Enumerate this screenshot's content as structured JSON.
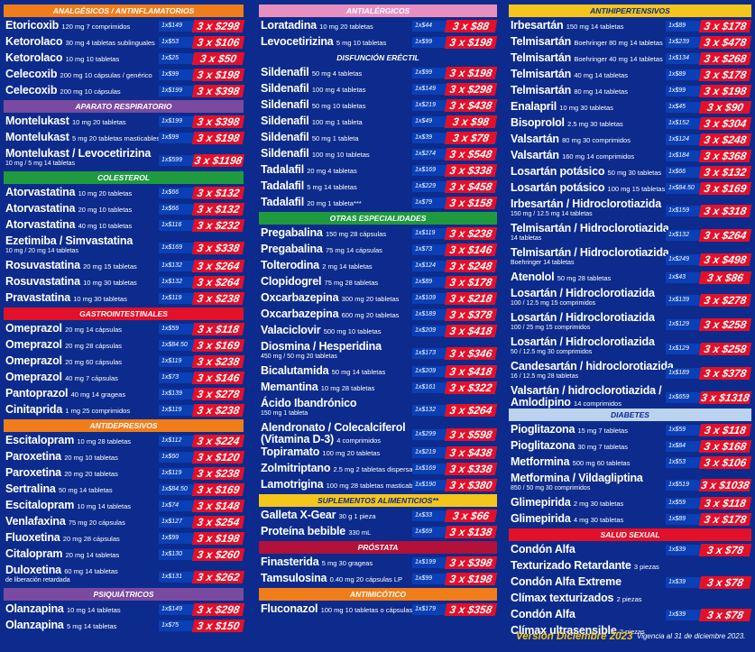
{
  "columns": [
    {
      "sections": [
        {
          "title": "ANALGÉSICOS / ANTINFLAMATORIOS",
          "color": "#f07d19",
          "rows": [
            {
              "name": "Etoricoxib",
              "detail": "120 mg 7 comprimidos",
              "unit": "1x$149",
              "price": "3 x $298"
            },
            {
              "name": "Ketorolaco",
              "detail": "30 mg 4 tabletas sublinguales",
              "unit": "1x$53",
              "price": "3 x $106"
            },
            {
              "name": "Ketorolaco",
              "detail": "10 mg 10 tabletas",
              "unit": "1x$25",
              "price": "3 x $50"
            },
            {
              "name": "Celecoxib",
              "detail": "200 mg 10 cápsulas / genérico",
              "unit": "1x$99",
              "price": "3 x $198"
            },
            {
              "name": "Celecoxib",
              "detail": "200 mg 10 cápsulas",
              "unit": "1x$199",
              "price": "3 x $398"
            }
          ]
        },
        {
          "title": "APARATO RESPIRATORIO",
          "color": "#7a4aa0",
          "rows": [
            {
              "name": "Montelukast",
              "detail": "10 mg 20 tabletas",
              "unit": "1x$199",
              "price": "3 x $398"
            },
            {
              "name": "Montelukast",
              "detail": "5 mg 20 tabletas masticables",
              "unit": "1x$99",
              "price": "3 x $198"
            },
            {
              "name": "Montelukast / Levocetirizina",
              "detail": "",
              "sub": "10 mg / 5 mg 14 tabletas",
              "unit": "1x$599",
              "price": "3 x $1198"
            }
          ]
        },
        {
          "title": "COLESTEROL",
          "color": "#1f9a3f",
          "rows": [
            {
              "name": "Atorvastatina",
              "detail": "10 mg 20 tabletas",
              "unit": "1x$66",
              "price": "3 x $132"
            },
            {
              "name": "Atorvastatina",
              "detail": "20 mg 10 tabletas",
              "unit": "1x$66",
              "price": "3 x $132"
            },
            {
              "name": "Atorvastatina",
              "detail": "40 mg 10 tabletas",
              "unit": "1x$116",
              "price": "3 x $232"
            },
            {
              "name": "Ezetimiba / Simvastatina",
              "detail": "",
              "sub": "10 mg / 20 mg 14 tabletas",
              "unit": "1x$169",
              "price": "3 x $338"
            },
            {
              "name": "Rosuvastatina",
              "detail": "20 mg 15 tabletas",
              "unit": "1x$132",
              "price": "3 x $264"
            },
            {
              "name": "Rosuvastatina",
              "detail": "10 mg 30 tabletas",
              "unit": "1x$132",
              "price": "3 x $264"
            },
            {
              "name": "Pravastatina",
              "detail": "10 mg 30 tabletas",
              "unit": "1x$119",
              "price": "3 x $238"
            }
          ]
        },
        {
          "title": "GASTROINTESTINALES",
          "color": "#e3102a",
          "rows": [
            {
              "name": "Omeprazol",
              "detail": "20 mg 14 cápsulas",
              "unit": "1x$59",
              "price": "3 x $118"
            },
            {
              "name": "Omeprazol",
              "detail": "20 mg 28 cápsulas",
              "unit": "1x$84.50",
              "price": "3 x $169"
            },
            {
              "name": "Omeprazol",
              "detail": "20 mg 60 cápsulas",
              "unit": "1x$119",
              "price": "3 x $238"
            },
            {
              "name": "Omeprazol",
              "detail": "40 mg 7 cápsulas",
              "unit": "1x$73",
              "price": "3 x $146"
            },
            {
              "name": "Pantoprazol",
              "detail": "40 mg 14 grageas",
              "unit": "1x$139",
              "price": "3 x $278"
            },
            {
              "name": "Cinitaprida",
              "detail": "1 mg 25 comprimidos",
              "unit": "1x$119",
              "price": "3 x $238"
            }
          ]
        },
        {
          "title": "ANTIDEPRESIVOS",
          "color": "#f07d19",
          "rows": [
            {
              "name": "Escitalopram",
              "detail": "10 mg 28 tabletas",
              "unit": "1x$112",
              "price": "3 x $224"
            },
            {
              "name": "Paroxetina",
              "detail": "20 mg 10 tabletas",
              "unit": "1x$60",
              "price": "3 x $120"
            },
            {
              "name": "Paroxetina",
              "detail": "20 mg 20 tabletas",
              "unit": "1x$119",
              "price": "3 x $238"
            },
            {
              "name": "Sertralina",
              "detail": "50 mg 14 tabletas",
              "unit": "1x$84.50",
              "price": "3 x $169"
            },
            {
              "name": "Escitalopram",
              "detail": "10 mg 14 tabletas",
              "unit": "1x$74",
              "price": "3 x $148"
            },
            {
              "name": "Venlafaxina",
              "detail": "75 mg 20 cápsulas",
              "unit": "1x$127",
              "price": "3 x $254"
            },
            {
              "name": "Fluoxetina",
              "detail": "20 mg 28 cápsulas",
              "unit": "1x$99",
              "price": "3 x $198"
            },
            {
              "name": "Citalopram",
              "detail": "20 mg 14 tabletas",
              "unit": "1x$130",
              "price": "3 x $260"
            },
            {
              "name": "Duloxetina",
              "detail": "60 mg 14 tabletas",
              "sub": "de liberación retardada",
              "unit": "1x$131",
              "price": "3 x $262"
            }
          ]
        },
        {
          "title": "PSIQUIÁTRICOS",
          "color": "#7a4aa0",
          "rows": [
            {
              "name": "Olanzapina",
              "detail": "10 mg 14 tabletas",
              "unit": "1x$149",
              "price": "3 x $298"
            },
            {
              "name": "Olanzapina",
              "detail": "5 mg 14 tabletas",
              "unit": "1x$75",
              "price": "3 x $150"
            }
          ]
        }
      ]
    },
    {
      "sections": [
        {
          "title": "ANTIALÉRGICOS",
          "color": "#e88fc2",
          "rows": [
            {
              "name": "Loratadina",
              "detail": "10 mg 20 tabletas",
              "unit": "1x$44",
              "price": "3 x $88"
            },
            {
              "name": "Levocetirizina",
              "detail": "5 mg 10 tabletas",
              "unit": "1x$99",
              "price": "3 x $198"
            }
          ]
        },
        {
          "title": "DISFUNCIÓN ERÉCTIL",
          "color": "#0c2b8c",
          "rows": [
            {
              "name": "Sildenafil",
              "detail": "50 mg 4 tabletas",
              "unit": "1x$99",
              "price": "3 x $198"
            },
            {
              "name": "Sildenafil",
              "detail": "100 mg 4 tabletas",
              "unit": "1x$149",
              "price": "3 x $298"
            },
            {
              "name": "Sildenafil",
              "detail": "50 mg 10 tabletas",
              "unit": "1x$219",
              "price": "3 x $438"
            },
            {
              "name": "Sildenafil",
              "detail": "100 mg 1 tableta",
              "unit": "1x$49",
              "price": "3 x $98"
            },
            {
              "name": "Sildenafil",
              "detail": "50 mg 1 tableta",
              "unit": "1x$39",
              "price": "3 x $78"
            },
            {
              "name": "Sildenafil",
              "detail": "100 mg 10 tabletas",
              "unit": "1x$274",
              "price": "3 x $548"
            },
            {
              "name": "Tadalafil",
              "detail": "20 mg 4 tabletas",
              "unit": "1x$169",
              "price": "3 x $338"
            },
            {
              "name": "Tadalafil",
              "detail": "5 mg 14 tabletas",
              "unit": "1x$229",
              "price": "3 x $458"
            },
            {
              "name": "Tadalafil",
              "detail": "20 mg 1 tableta***",
              "unit": "1x$79",
              "price": "3 x $158"
            }
          ]
        },
        {
          "title": "OTRAS ESPECIALIDADES",
          "color": "#1f9a3f",
          "rows": [
            {
              "name": "Pregabalina",
              "detail": "150 mg 28 cápsulas",
              "unit": "1x$119",
              "price": "3 x $238"
            },
            {
              "name": "Pregabalina",
              "detail": "75 mg 14 cápsulas",
              "unit": "1x$73",
              "price": "3 x $146"
            },
            {
              "name": "Tolterodina",
              "detail": "2 mg 14 tabletas",
              "unit": "1x$124",
              "price": "3 x $248"
            },
            {
              "name": "Clopidogrel",
              "detail": "75 mg 28 tabletas",
              "unit": "1x$89",
              "price": "3 x $178"
            },
            {
              "name": "Oxcarbazepina",
              "detail": "300 mg 20 tabletas",
              "unit": "1x$109",
              "price": "3 x $218"
            },
            {
              "name": "Oxcarbazepina",
              "detail": "600 mg 20 tabletas",
              "unit": "1x$189",
              "price": "3 x $378"
            },
            {
              "name": "Valaciclovir",
              "detail": "500 mg 10 tabletas",
              "unit": "1x$209",
              "price": "3 x $418"
            },
            {
              "name": "Diosmina / Hesperidina",
              "detail": "",
              "sub": "450 mg / 50 mg 20 tabletas",
              "unit": "1x$173",
              "price": "3 x $346"
            },
            {
              "name": "Bicalutamida",
              "detail": "50 mg 14 tabletas",
              "unit": "1x$209",
              "price": "3 x $418"
            },
            {
              "name": "Memantina",
              "detail": "10 mg 28 tabletas",
              "unit": "1x$161",
              "price": "3 x $322"
            },
            {
              "name": "Ácido Ibandrónico",
              "detail": "",
              "sub": "150 mg 1 tableta",
              "unit": "1x$132",
              "price": "3 x $264"
            },
            {
              "name": "Alendronato / Colecalciferol",
              "detail": "",
              "name2": "(Vitamina D-3)",
              "detail2": "4 comprimidos",
              "unit": "1x$299",
              "price": "3 x $598"
            },
            {
              "name": "Topiramato",
              "detail": "100 mg 20 tabletas",
              "unit": "1x$219",
              "price": "3 x $438"
            },
            {
              "name": "Zolmitriptano",
              "detail": "2.5 mg 2 tabletas dispersable",
              "unit": "1x$169",
              "price": "3 x $338"
            },
            {
              "name": "Lamotrigina",
              "detail": "100 mg 28 tabletas masticables",
              "unit": "1x$190",
              "price": "3 x $380"
            }
          ]
        },
        {
          "title": "SUPLEMENTOS ALIMENTICIOS**",
          "color": "#f4c51b",
          "dark": true,
          "rows": [
            {
              "name": "Galleta X-Gear",
              "detail": "30 g 1 pieza",
              "unit": "1x$33",
              "price": "3 x $66"
            },
            {
              "name": "Proteína bebible",
              "detail": "330 mL",
              "unit": "1x$69",
              "price": "3 x $138"
            }
          ]
        },
        {
          "title": "PRÓSTATA",
          "color": "#b3103a",
          "rows": [
            {
              "name": "Finasterida",
              "detail": "5 mg 30 grageas",
              "unit": "1x$199",
              "price": "3 x $398"
            },
            {
              "name": "Tamsulosina",
              "detail": "0.40 mg 20 cápsulas LP",
              "unit": "1x$99",
              "price": "3 x $198"
            }
          ]
        },
        {
          "title": "ANTIMICÓTICO",
          "color": "#f07d19",
          "rows": [
            {
              "name": "Fluconazol",
              "detail": "100 mg 10 tabletas o cápsulas",
              "unit": "1x$179",
              "price": "3 x $358"
            }
          ]
        }
      ]
    },
    {
      "sections": [
        {
          "title": "ANTIHIPERTENSIVOS",
          "color": "#f4c51b",
          "dark": true,
          "rows": [
            {
              "name": "Irbesartán",
              "detail": "150 mg 14 tabletas",
              "unit": "1x$89",
              "price": "3 x $178"
            },
            {
              "name": "Telmisartán",
              "detail": "Boehringer 80 mg 14 tabletas",
              "unit": "1x$239",
              "price": "3 x $478"
            },
            {
              "name": "Telmisartán",
              "detail": "Boehringer 40 mg 14 tabletas",
              "unit": "1x$134",
              "price": "3 x $268"
            },
            {
              "name": "Telmisartán",
              "detail": "40 mg 14 tabletas",
              "unit": "1x$89",
              "price": "3 x $178"
            },
            {
              "name": "Telmisartán",
              "detail": "80 mg 14 tabletas",
              "unit": "1x$99",
              "price": "3 x $198"
            },
            {
              "name": "Enalapril",
              "detail": "10 mg 30 tabletas",
              "unit": "1x$45",
              "price": "3 x $90"
            },
            {
              "name": "Bisoprolol",
              "detail": "2.5 mg 30 tabletas",
              "unit": "1x$152",
              "price": "3 x $304"
            },
            {
              "name": "Valsartán",
              "detail": "80 mg 30 comprimidos",
              "unit": "1x$124",
              "price": "3 x $248"
            },
            {
              "name": "Valsartán",
              "detail": "160 mg 14 comprimidos",
              "unit": "1x$184",
              "price": "3 x $368"
            },
            {
              "name": "Losartán potásico",
              "detail": "50 mg 30 tabletas",
              "unit": "1x$66",
              "price": "3 x $132"
            },
            {
              "name": "Losartán potásico",
              "detail": "100 mg 15 tabletas",
              "unit": "1x$84.50",
              "price": "3 x $169"
            },
            {
              "name": "Irbesartán / Hidroclorotiazida",
              "detail": "",
              "sub": "150 mg / 12.5 mg 14 tabletas",
              "unit": "1x$159",
              "price": "3 x $318"
            },
            {
              "name": "Telmisartán / Hidroclorotiazida",
              "detail": "",
              "sub": "14 tabletas",
              "unit": "1x$132",
              "price": "3 x $264"
            },
            {
              "name": "Telmisartán / Hidroclorotiazida",
              "detail": "",
              "sub": "Boehringer 14 tabletas",
              "unit": "1x$249",
              "price": "3 x $498"
            },
            {
              "name": "Atenolol",
              "detail": "50 mg 28 tabletas",
              "unit": "1x$43",
              "price": "3 x $86"
            },
            {
              "name": "Losartán / Hidroclorotiazida",
              "detail": "",
              "sub": "100 / 12.5 mg 15 comprimidos",
              "unit": "1x$139",
              "price": "3 x $278"
            },
            {
              "name": "Losartán / Hidroclorotiazida",
              "detail": "",
              "sub": "100 / 25 mg 15 comprimidos",
              "unit": "1x$129",
              "price": "3 x $258"
            },
            {
              "name": "Losartán / Hidroclorotiazida",
              "detail": "",
              "sub": "50 / 12.5 mg 30 comprimidos",
              "unit": "1x$129",
              "price": "3 x $258"
            },
            {
              "name": "Candesartán / hidroclorotiazida",
              "detail": "",
              "sub": "16 / 12.5 mg 28 tabletas",
              "unit": "1x$189",
              "price": "3 x $378"
            },
            {
              "name": "Valsartán / hidroclorotiazida /",
              "detail": "",
              "name2": "Amlodipino",
              "detail2": "14 comprimidos",
              "unit": "1x$659",
              "price": "3 x $1318"
            }
          ]
        },
        {
          "title": "DIABETES",
          "color": "#bcd3ef",
          "dark": true,
          "rows": [
            {
              "name": "Pioglitazona",
              "detail": "15 mg 7 tabletas",
              "unit": "1x$59",
              "price": "3 x $118"
            },
            {
              "name": "Pioglitazona",
              "detail": "30 mg 7 tabletas",
              "unit": "1x$84",
              "price": "3 x $168"
            },
            {
              "name": "Metformina",
              "detail": "500 mg 60 tabletas",
              "unit": "1x$53",
              "price": "3 x $106"
            },
            {
              "name": "Metformina / Vildagliptina",
              "detail": "",
              "sub": "850 / 50 mg 30 comprimidos",
              "unit": "1x$519",
              "price": "3 x $1038"
            },
            {
              "name": "Glimepirida",
              "detail": "2 mg 30 tabletas",
              "unit": "1x$59",
              "price": "3 x $118"
            },
            {
              "name": "Glimepirida",
              "detail": "4 mg 30 tabletas",
              "unit": "1x$89",
              "price": "3 x $178"
            }
          ]
        },
        {
          "title": "SALUD SEXUAL",
          "color": "#e3102a",
          "rows": [
            {
              "name": "Condón Alfa",
              "detail": "",
              "unit": "1x$39",
              "price": "3 x $78"
            },
            {
              "name": "Texturizado Retardante",
              "detail": "3 piezas",
              "unit": "",
              "price": ""
            },
            {
              "name": "Condón Alfa Extreme",
              "detail": "",
              "unit": "1x$39",
              "price": "3 x $78"
            },
            {
              "name": "Clímax texturizados",
              "detail": "2 piezas",
              "unit": "",
              "price": ""
            },
            {
              "name": "Condón Alfa",
              "detail": "",
              "unit": "1x$39",
              "price": "3 x $78"
            },
            {
              "name": "Clímax ultrasensible",
              "detail": "2 piezas",
              "unit": "",
              "price": ""
            }
          ]
        }
      ]
    }
  ],
  "footer": {
    "version": "Versión Diciembre 2023",
    "validity": "Vigencia al 31 de diciembre 2023."
  }
}
